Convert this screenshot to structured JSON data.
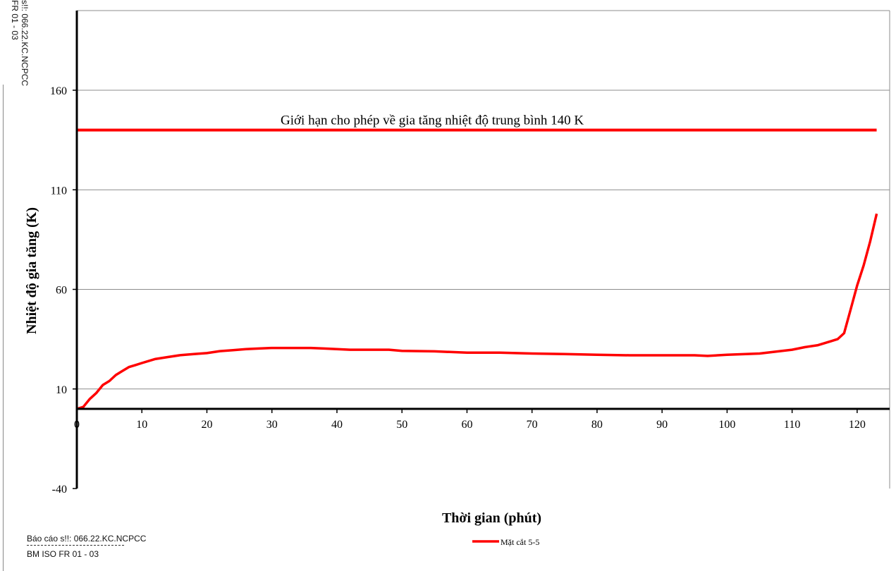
{
  "header_note": {
    "report_no": "Báo cáo sô': 066.22.KC.NCPCC",
    "form_code": "BM ISO FR 01 - 03",
    "side_line1": "s!!: 066.22.KC.NCPCC",
    "side_line2": "FR 01 - 03"
  },
  "footer": {
    "report_no": "Báo cáo s!!: 066.22.KC.NCPCC",
    "form_code": "BM ISO FR 01 - 03"
  },
  "chart_data": {
    "type": "line",
    "xlabel": "Thời gian (phút)",
    "ylabel": "Nhiệt độ gia tăng (K)",
    "xlim": [
      0,
      125
    ],
    "ylim": [
      -40,
      200
    ],
    "xticks": [
      0,
      10,
      20,
      30,
      40,
      50,
      60,
      70,
      80,
      90,
      100,
      110,
      120
    ],
    "yticks": [
      -40,
      10,
      60,
      110,
      160
    ],
    "grid": "horizontal",
    "legend": "bottom-center",
    "colors": {
      "series": "#ff0000",
      "limit": "#ff0000",
      "axis": "#000000",
      "grid": "#8c8c8c"
    },
    "limit_line": {
      "y": 140,
      "label": "Giới hạn cho phép về gia tăng nhiệt độ trung bình 140 K"
    },
    "series": [
      {
        "name": "Mặt cắt 5-5",
        "x": [
          0,
          1,
          2,
          3,
          4,
          5,
          6,
          7,
          8,
          9,
          10,
          12,
          14,
          16,
          18,
          20,
          22,
          24,
          26,
          28,
          30,
          32,
          34,
          36,
          38,
          40,
          42,
          44,
          46,
          48,
          50,
          55,
          60,
          65,
          70,
          75,
          80,
          85,
          90,
          95,
          97,
          100,
          105,
          110,
          112,
          114,
          116,
          117,
          118,
          119,
          120,
          121,
          122,
          123
        ],
        "values": [
          0,
          1,
          5,
          8,
          12,
          14,
          17,
          19,
          21,
          22,
          23,
          25,
          26,
          27,
          27.5,
          28,
          29,
          29.5,
          30,
          30.3,
          30.6,
          30.6,
          30.6,
          30.6,
          30.3,
          30,
          29.7,
          29.7,
          29.7,
          29.7,
          29.1,
          28.9,
          28.2,
          28.2,
          27.8,
          27.5,
          27.2,
          26.9,
          26.9,
          26.9,
          26.6,
          27.2,
          27.8,
          29.7,
          31,
          32,
          34,
          35,
          38,
          50,
          62,
          72,
          84,
          98
        ]
      }
    ]
  }
}
